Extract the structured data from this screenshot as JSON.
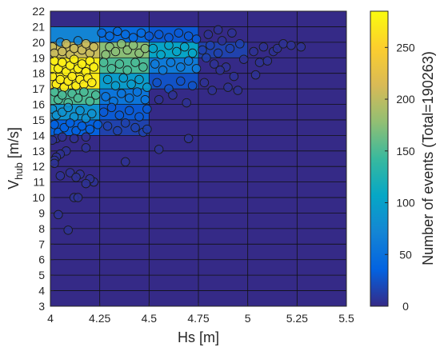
{
  "chart_data": {
    "type": "heatmap",
    "title": "",
    "xlabel": "Hs [m]",
    "ylabel": {
      "main": "V",
      "subscript": "hub",
      "suffix": " [m/s]"
    },
    "xlim": [
      4,
      5.5
    ],
    "ylim": [
      3,
      22
    ],
    "x_ticks": [
      "4",
      "4.25",
      "4.5",
      "4.75",
      "5",
      "5.25",
      "5.5"
    ],
    "x_tick_values": [
      4,
      4.25,
      4.5,
      4.75,
      5,
      5.25,
      5.5
    ],
    "y_ticks": [
      "3",
      "4",
      "5",
      "6",
      "7",
      "8",
      "9",
      "10",
      "11",
      "12",
      "13",
      "14",
      "15",
      "16",
      "17",
      "18",
      "19",
      "20",
      "21",
      "22"
    ],
    "y_tick_values": [
      3,
      4,
      5,
      6,
      7,
      8,
      9,
      10,
      11,
      12,
      13,
      14,
      15,
      16,
      17,
      18,
      19,
      20,
      21,
      22
    ],
    "grid": true,
    "x_bin_edges": [
      4,
      4.25,
      4.5,
      4.75,
      5,
      5.25,
      5.5
    ],
    "y_bin_edges": [
      3,
      4,
      5,
      6,
      7,
      8,
      9,
      10,
      11,
      12,
      13,
      14,
      15,
      16,
      17,
      18,
      19,
      20,
      21,
      22
    ],
    "colorbar": {
      "label": "Number of events (Total=190263)",
      "ticks": [
        "0",
        "50",
        "100",
        "150",
        "200",
        "250"
      ],
      "tick_values": [
        0,
        50,
        100,
        150,
        200,
        250
      ],
      "range": [
        0,
        285
      ],
      "colormap": "parula",
      "colors": [
        "#352a87",
        "#0363e1",
        "#1485d4",
        "#06a7c6",
        "#38b99e",
        "#92bf73",
        "#d9ba56",
        "#fcce2e",
        "#f9fb0e"
      ]
    },
    "heat_zones": [
      {
        "x": [
          4.0,
          4.25
        ],
        "y": [
          14,
          15
        ],
        "value": 35
      },
      {
        "x": [
          4.0,
          4.25
        ],
        "y": [
          15,
          16
        ],
        "value": 85
      },
      {
        "x": [
          4.0,
          4.25
        ],
        "y": [
          16,
          17
        ],
        "value": 150
      },
      {
        "x": [
          4.0,
          4.25
        ],
        "y": [
          17,
          18
        ],
        "value": 272
      },
      {
        "x": [
          4.0,
          4.25
        ],
        "y": [
          18,
          19
        ],
        "value": 275
      },
      {
        "x": [
          4.0,
          4.25
        ],
        "y": [
          19,
          20
        ],
        "value": 205
      },
      {
        "x": [
          4.0,
          4.25
        ],
        "y": [
          20,
          21
        ],
        "value": 70
      },
      {
        "x": [
          4.25,
          4.5
        ],
        "y": [
          14,
          15
        ],
        "value": 15
      },
      {
        "x": [
          4.25,
          4.5
        ],
        "y": [
          15,
          16
        ],
        "value": 30
      },
      {
        "x": [
          4.25,
          4.5
        ],
        "y": [
          16,
          17
        ],
        "value": 55
      },
      {
        "x": [
          4.25,
          4.5
        ],
        "y": [
          17,
          18
        ],
        "value": 95
      },
      {
        "x": [
          4.25,
          4.5
        ],
        "y": [
          18,
          19
        ],
        "value": 150
      },
      {
        "x": [
          4.25,
          4.5
        ],
        "y": [
          19,
          20
        ],
        "value": 175
      },
      {
        "x": [
          4.25,
          4.5
        ],
        "y": [
          20,
          21
        ],
        "value": 45
      },
      {
        "x": [
          4.5,
          4.75
        ],
        "y": [
          17,
          18
        ],
        "value": 25
      },
      {
        "x": [
          4.5,
          4.75
        ],
        "y": [
          18,
          19
        ],
        "value": 60
      },
      {
        "x": [
          4.5,
          4.75
        ],
        "y": [
          19,
          20
        ],
        "value": 105
      },
      {
        "x": [
          4.5,
          4.75
        ],
        "y": [
          20,
          21
        ],
        "value": 30
      },
      {
        "x": [
          4.75,
          5.0
        ],
        "y": [
          19,
          20
        ],
        "value": 15
      }
    ],
    "scatter_points": [
      [
        4.01,
        19.7
      ],
      [
        4.02,
        19.3
      ],
      [
        4.05,
        20.0
      ],
      [
        4.06,
        19.4
      ],
      [
        4.08,
        19.9
      ],
      [
        4.1,
        19.2
      ],
      [
        4.12,
        19.6
      ],
      [
        4.14,
        20.1
      ],
      [
        4.16,
        19.5
      ],
      [
        4.18,
        19.9
      ],
      [
        4.2,
        19.3
      ],
      [
        4.22,
        19.7
      ],
      [
        4.02,
        18.8
      ],
      [
        4.04,
        18.3
      ],
      [
        4.06,
        18.7
      ],
      [
        4.08,
        18.1
      ],
      [
        4.1,
        18.5
      ],
      [
        4.12,
        18.9
      ],
      [
        4.14,
        18.3
      ],
      [
        4.16,
        18.6
      ],
      [
        4.18,
        18.1
      ],
      [
        4.2,
        18.8
      ],
      [
        4.22,
        18.4
      ],
      [
        4.01,
        17.8
      ],
      [
        4.03,
        17.3
      ],
      [
        4.05,
        17.6
      ],
      [
        4.07,
        17.1
      ],
      [
        4.09,
        17.5
      ],
      [
        4.11,
        17.8
      ],
      [
        4.13,
        17.2
      ],
      [
        4.15,
        17.6
      ],
      [
        4.17,
        17.3
      ],
      [
        4.19,
        17.7
      ],
      [
        4.21,
        17.4
      ],
      [
        4.02,
        16.8
      ],
      [
        4.04,
        16.3
      ],
      [
        4.06,
        16.6
      ],
      [
        4.09,
        16.1
      ],
      [
        4.11,
        16.7
      ],
      [
        4.14,
        16.4
      ],
      [
        4.17,
        16.8
      ],
      [
        4.2,
        16.2
      ],
      [
        4.23,
        16.6
      ],
      [
        4.01,
        15.7
      ],
      [
        4.03,
        15.3
      ],
      [
        4.06,
        15.5
      ],
      [
        4.09,
        15.8
      ],
      [
        4.12,
        15.2
      ],
      [
        4.15,
        15.6
      ],
      [
        4.18,
        15.1
      ],
      [
        4.21,
        15.4
      ],
      [
        4.02,
        14.7
      ],
      [
        4.04,
        14.2
      ],
      [
        4.07,
        14.5
      ],
      [
        4.1,
        14.8
      ],
      [
        4.13,
        14.3
      ],
      [
        4.16,
        14.6
      ],
      [
        4.2,
        14.4
      ],
      [
        4.24,
        14.7
      ],
      [
        4.03,
        13.8
      ],
      [
        4.01,
        13.7
      ],
      [
        4.06,
        13.9
      ],
      [
        4.12,
        13.8
      ],
      [
        4.18,
        13.9
      ],
      [
        4.08,
        13.0
      ],
      [
        4.05,
        12.8
      ],
      [
        4.03,
        12.6
      ],
      [
        4.18,
        13.2
      ],
      [
        4.02,
        12.4
      ],
      [
        4.02,
        12.2
      ],
      [
        4.1,
        11.6
      ],
      [
        4.15,
        11.5
      ],
      [
        4.13,
        11.3
      ],
      [
        4.05,
        11.4
      ],
      [
        4.22,
        11.0
      ],
      [
        4.2,
        11.2
      ],
      [
        4.18,
        10.9
      ],
      [
        4.12,
        10.0
      ],
      [
        4.14,
        10.0
      ],
      [
        4.04,
        8.9
      ],
      [
        4.09,
        7.9
      ],
      [
        4.28,
        19.2
      ],
      [
        4.3,
        19.7
      ],
      [
        4.33,
        19.4
      ],
      [
        4.36,
        19.9
      ],
      [
        4.39,
        19.5
      ],
      [
        4.42,
        19.8
      ],
      [
        4.45,
        19.3
      ],
      [
        4.48,
        19.6
      ],
      [
        4.27,
        18.7
      ],
      [
        4.31,
        18.3
      ],
      [
        4.35,
        18.6
      ],
      [
        4.39,
        18.2
      ],
      [
        4.43,
        18.7
      ],
      [
        4.47,
        18.4
      ],
      [
        4.29,
        17.6
      ],
      [
        4.33,
        17.2
      ],
      [
        4.37,
        17.7
      ],
      [
        4.41,
        17.3
      ],
      [
        4.45,
        17.6
      ],
      [
        4.49,
        17.1
      ],
      [
        4.28,
        16.5
      ],
      [
        4.32,
        16.2
      ],
      [
        4.36,
        16.7
      ],
      [
        4.4,
        16.4
      ],
      [
        4.44,
        16.8
      ],
      [
        4.48,
        16.3
      ],
      [
        4.27,
        15.5
      ],
      [
        4.31,
        15.8
      ],
      [
        4.35,
        15.3
      ],
      [
        4.4,
        15.6
      ],
      [
        4.45,
        15.2
      ],
      [
        4.49,
        15.7
      ],
      [
        4.29,
        14.6
      ],
      [
        4.34,
        14.3
      ],
      [
        4.38,
        14.8
      ],
      [
        4.43,
        14.5
      ],
      [
        4.47,
        14.2
      ],
      [
        4.26,
        20.6
      ],
      [
        4.3,
        20.4
      ],
      [
        4.34,
        20.7
      ],
      [
        4.38,
        20.5
      ],
      [
        4.42,
        20.3
      ],
      [
        4.46,
        20.6
      ],
      [
        4.5,
        20.4
      ],
      [
        4.38,
        12.3
      ],
      [
        4.55,
        13.1
      ],
      [
        4.7,
        13.8
      ],
      [
        4.49,
        14.4
      ],
      [
        4.52,
        19.6
      ],
      [
        4.56,
        19.2
      ],
      [
        4.6,
        19.8
      ],
      [
        4.64,
        19.4
      ],
      [
        4.68,
        19.7
      ],
      [
        4.72,
        19.3
      ],
      [
        4.53,
        18.6
      ],
      [
        4.57,
        18.2
      ],
      [
        4.61,
        18.7
      ],
      [
        4.66,
        18.4
      ],
      [
        4.7,
        18.8
      ],
      [
        4.74,
        18.3
      ],
      [
        4.54,
        17.4
      ],
      [
        4.6,
        17.0
      ],
      [
        4.66,
        17.5
      ],
      [
        4.72,
        17.2
      ],
      [
        4.55,
        16.3
      ],
      [
        4.62,
        16.6
      ],
      [
        4.69,
        16.1
      ],
      [
        4.55,
        20.5
      ],
      [
        4.6,
        20.3
      ],
      [
        4.65,
        20.6
      ],
      [
        4.7,
        20.4
      ],
      [
        4.74,
        20.2
      ],
      [
        4.77,
        19.5
      ],
      [
        4.79,
        19.0
      ],
      [
        4.81,
        19.8
      ],
      [
        4.83,
        18.6
      ],
      [
        4.85,
        19.3
      ],
      [
        4.87,
        20.1
      ],
      [
        4.89,
        18.4
      ],
      [
        4.91,
        19.6
      ],
      [
        4.93,
        17.8
      ],
      [
        4.96,
        19.9
      ],
      [
        4.98,
        18.9
      ],
      [
        4.78,
        17.4
      ],
      [
        4.82,
        16.9
      ],
      [
        4.86,
        18.2
      ],
      [
        4.9,
        17.1
      ],
      [
        4.95,
        16.9
      ],
      [
        4.8,
        20.5
      ],
      [
        4.85,
        20.8
      ],
      [
        4.92,
        20.6
      ],
      [
        5.03,
        19.4
      ],
      [
        5.04,
        17.9
      ],
      [
        5.06,
        18.7
      ],
      [
        5.08,
        19.7
      ],
      [
        5.1,
        18.8
      ],
      [
        5.13,
        19.4
      ],
      [
        5.15,
        19.6
      ],
      [
        5.18,
        19.9
      ],
      [
        5.22,
        19.8
      ],
      [
        5.27,
        19.7
      ]
    ]
  }
}
